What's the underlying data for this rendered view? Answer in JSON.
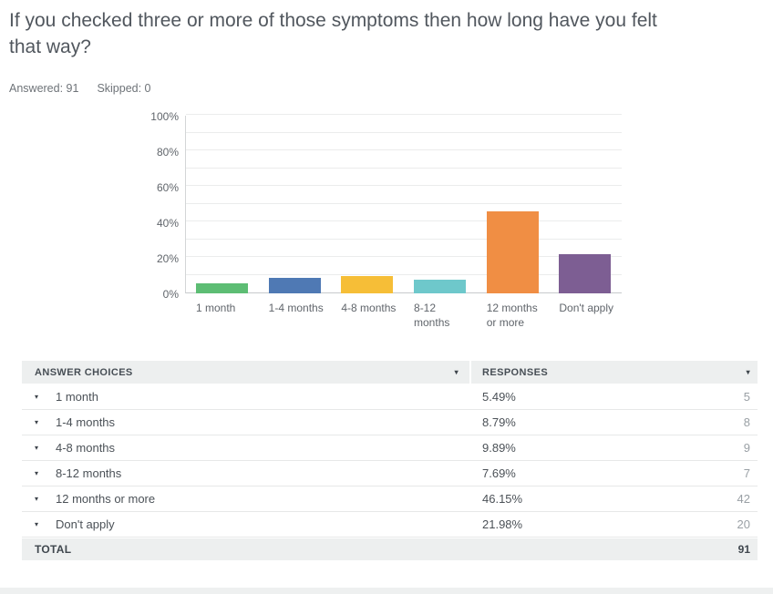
{
  "header": {
    "title": "If you checked three or more of those symptoms then how long have you felt\nthat way?",
    "answered": "Answered: 91",
    "skipped": "Skipped: 0"
  },
  "chart_data": {
    "type": "bar",
    "title": "",
    "categories": [
      "1 month",
      "1-4 months",
      "4-8 months",
      "8-12\nmonths",
      "12 months\nor more",
      "Don't apply"
    ],
    "values": [
      5.49,
      8.79,
      9.89,
      7.69,
      46.15,
      21.98
    ],
    "bar_colors": [
      "#5dbd74",
      "#4f79b4",
      "#f6be37",
      "#6ec8cb",
      "#f08e44",
      "#7d5e93"
    ],
    "xlabel": "",
    "ylabel": "",
    "ylim": [
      0,
      100
    ],
    "y_ticks": [
      0,
      20,
      40,
      60,
      80,
      100
    ],
    "y_tick_labels": [
      "0%",
      "20%",
      "40%",
      "60%",
      "80%",
      "100%"
    ],
    "grid_step_pct": 10,
    "grid": true,
    "legend": false
  },
  "table": {
    "headers": {
      "choices": "ANSWER CHOICES",
      "responses": "RESPONSES"
    },
    "sort_icon": "▾",
    "row_toggle_icon": "▾",
    "rows": [
      {
        "choice": "1 month",
        "percent": "5.49%",
        "count": "5"
      },
      {
        "choice": "1-4 months",
        "percent": "8.79%",
        "count": "8"
      },
      {
        "choice": "4-8 months",
        "percent": "9.89%",
        "count": "9"
      },
      {
        "choice": "8-12 months",
        "percent": "7.69%",
        "count": "7"
      },
      {
        "choice": "12 months or more",
        "percent": "46.15%",
        "count": "42"
      },
      {
        "choice": "Don't apply",
        "percent": "21.98%",
        "count": "20"
      }
    ],
    "total_label": "TOTAL",
    "total_value": "91"
  }
}
